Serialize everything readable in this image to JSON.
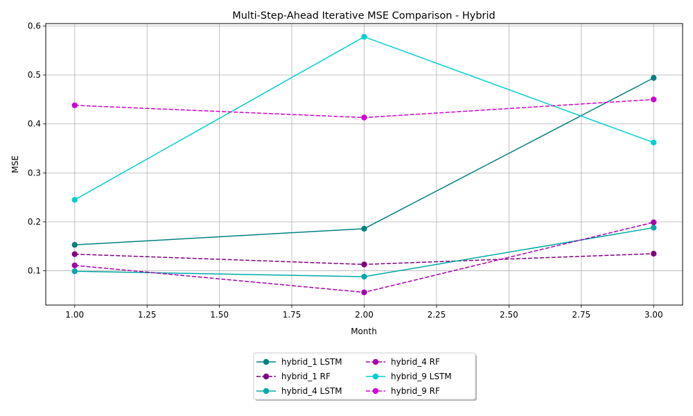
{
  "chart_data": {
    "type": "line",
    "title": "Multi-Step-Ahead Iterative MSE Comparison - Hybrid",
    "xlabel": "Month",
    "ylabel": "MSE",
    "xlim": [
      0.9,
      3.1
    ],
    "ylim": [
      0.03,
      0.605
    ],
    "xticks": [
      "1.00",
      "1.25",
      "1.50",
      "1.75",
      "2.00",
      "2.25",
      "2.50",
      "2.75",
      "3.00"
    ],
    "xtick_values": [
      1.0,
      1.25,
      1.5,
      1.75,
      2.0,
      2.25,
      2.5,
      2.75,
      3.0
    ],
    "yticks": [
      "0.1",
      "0.2",
      "0.3",
      "0.4",
      "0.5",
      "0.6"
    ],
    "ytick_values": [
      0.1,
      0.2,
      0.3,
      0.4,
      0.5,
      0.6
    ],
    "grid": true,
    "legend_position": "bottom-center",
    "x": [
      1,
      2,
      3
    ],
    "series": [
      {
        "name": "hybrid_1 LSTM",
        "values": [
          0.153,
          0.186,
          0.494
        ],
        "color": "#008080",
        "style": "solid"
      },
      {
        "name": "hybrid_1 RF",
        "values": [
          0.134,
          0.113,
          0.135
        ],
        "color": "#800080",
        "style": "dashed"
      },
      {
        "name": "hybrid_4 LSTM",
        "values": [
          0.099,
          0.088,
          0.188
        ],
        "color": "#00A8A8",
        "style": "solid"
      },
      {
        "name": "hybrid_4 RF",
        "values": [
          0.111,
          0.056,
          0.199
        ],
        "color": "#A800A8",
        "style": "dashed"
      },
      {
        "name": "hybrid_9 LSTM",
        "values": [
          0.245,
          0.578,
          0.362
        ],
        "color": "#00D0D0",
        "style": "solid"
      },
      {
        "name": "hybrid_9 RF",
        "values": [
          0.438,
          0.413,
          0.45
        ],
        "color": "#D000D0",
        "style": "dashed"
      }
    ]
  }
}
